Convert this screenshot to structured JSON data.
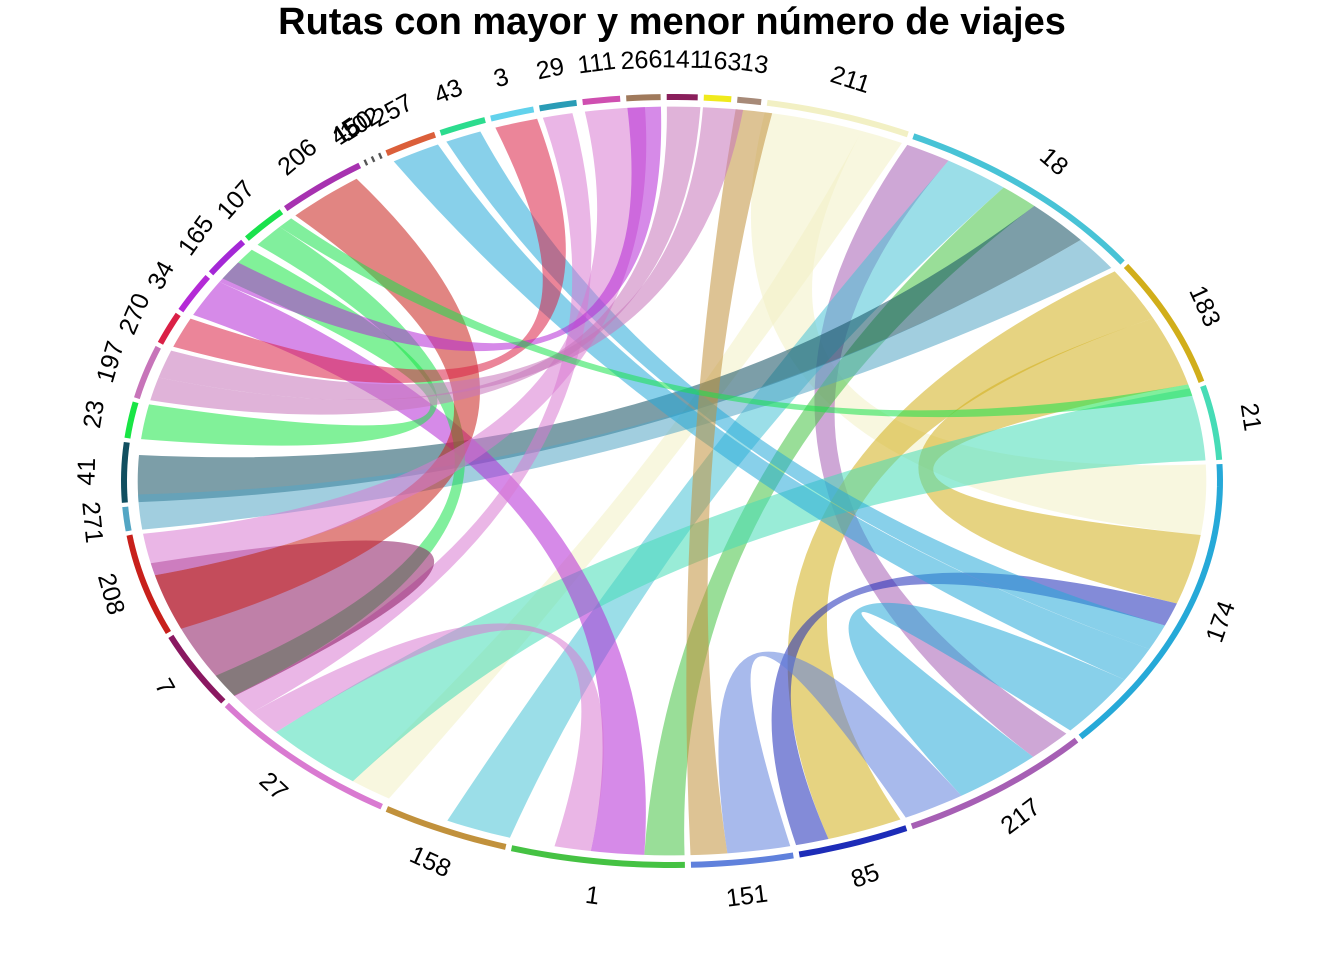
{
  "chart_data": {
    "type": "chord",
    "title": "Rutas con mayor y menor número de viajes",
    "sectors": [
      {
        "label": "211",
        "value": 86,
        "color": "#f2f0c4"
      },
      {
        "label": "18",
        "value": 162,
        "color": "#48c3d6"
      },
      {
        "label": "183",
        "value": 106,
        "color": "#d1ae1a"
      },
      {
        "label": "21",
        "value": 62,
        "color": "#46dcb6"
      },
      {
        "label": "174",
        "value": 246,
        "color": "#26a9d8"
      },
      {
        "label": "217",
        "value": 120,
        "color": "#a65fb4"
      },
      {
        "label": "85",
        "value": 66,
        "color": "#1d2cb8"
      },
      {
        "label": "151",
        "value": 60,
        "color": "#6081dc"
      },
      {
        "label": "1",
        "value": 102,
        "color": "#45c243"
      },
      {
        "label": "158",
        "value": 76,
        "color": "#c1913c"
      },
      {
        "label": "27",
        "value": 124,
        "color": "#d97ad1"
      },
      {
        "label": "7",
        "value": 62,
        "color": "#8a1861"
      },
      {
        "label": "208",
        "value": 84,
        "color": "#c8201b"
      },
      {
        "label": "271",
        "value": 20,
        "color": "#53a6c4"
      },
      {
        "label": "41",
        "value": 50,
        "color": "#114f60"
      },
      {
        "label": "23",
        "value": 30,
        "color": "#19e545"
      },
      {
        "label": "197",
        "value": 44,
        "color": "#c774b9"
      },
      {
        "label": "270",
        "value": 26,
        "color": "#da2046"
      },
      {
        "label": "34",
        "value": 32,
        "color": "#b42ad6"
      },
      {
        "label": "165",
        "value": 32,
        "color": "#a428d6"
      },
      {
        "label": "107",
        "value": 30,
        "color": "#19e24c"
      },
      {
        "label": "206",
        "value": 56,
        "color": "#a732b0"
      },
      {
        "label": "45",
        "value": 1.5,
        "color": "#555555"
      },
      {
        "label": "150",
        "value": 1.5,
        "color": "#555555"
      },
      {
        "label": "102",
        "value": 1.5,
        "color": "#555555"
      },
      {
        "label": "257",
        "value": 32,
        "color": "#db5f3a"
      },
      {
        "label": "43",
        "value": 28,
        "color": "#2cdc8e"
      },
      {
        "label": "3",
        "value": 26,
        "color": "#62d2ec"
      },
      {
        "label": "29",
        "value": 22,
        "color": "#2a9cb6"
      },
      {
        "label": "111",
        "value": 22,
        "color": "#cf4fb0"
      },
      {
        "label": "266",
        "value": 20,
        "color": "#a07a5c"
      },
      {
        "label": "141",
        "value": 18,
        "color": "#8a1f5c"
      },
      {
        "label": "163",
        "value": 16,
        "color": "#f0ea1c"
      },
      {
        "label": "13",
        "value": 14,
        "color": "#a78a78"
      }
    ],
    "chords": [
      {
        "from": "211",
        "to": "174",
        "value": 60,
        "color": "#f2f0c4"
      },
      {
        "from": "211",
        "to": "27",
        "value": 26,
        "color": "#f2f0c4"
      },
      {
        "from": "18",
        "to": "217",
        "value": 28,
        "color": "#a65fb4"
      },
      {
        "from": "18",
        "to": "158",
        "value": 40,
        "color": "#48c3d6"
      },
      {
        "from": "18",
        "to": "1",
        "value": 24,
        "color": "#45c243"
      },
      {
        "from": "18",
        "to": "41",
        "value": 40,
        "color": "#114f60"
      },
      {
        "from": "18",
        "to": "271",
        "value": 30,
        "color": "#53a6c4"
      },
      {
        "from": "183",
        "to": "85",
        "value": 46,
        "color": "#d1ae1a"
      },
      {
        "from": "183",
        "to": "174",
        "value": 60,
        "color": "#d1ae1a"
      },
      {
        "from": "21",
        "to": "27",
        "value": 62,
        "color": "#46dcb6"
      },
      {
        "from": "174",
        "to": "85",
        "value": 20,
        "color": "#1d2cb8"
      },
      {
        "from": "174",
        "to": "43",
        "value": 22,
        "color": "#26a9d8"
      },
      {
        "from": "174",
        "to": "257",
        "value": 30,
        "color": "#26a9d8"
      },
      {
        "from": "174",
        "to": "217",
        "value": 54,
        "color": "#26a9d8"
      },
      {
        "from": "217",
        "to": "151",
        "value": 38,
        "color": "#6081dc"
      },
      {
        "from": "151",
        "to": "13",
        "value": 22,
        "color": "#c1913c"
      },
      {
        "from": "1",
        "to": "34",
        "value": 32,
        "color": "#b42ad6"
      },
      {
        "from": "1",
        "to": "27",
        "value": 22,
        "color": "#d97ad1"
      },
      {
        "from": "27",
        "to": "29",
        "value": 18,
        "color": "#d97ad1"
      },
      {
        "from": "27",
        "to": "107",
        "value": 20,
        "color": "#19e24c"
      },
      {
        "from": "7",
        "to": "7",
        "value": 62,
        "color": "#8a1861"
      },
      {
        "from": "208",
        "to": "206",
        "value": 48,
        "color": "#c8201b"
      },
      {
        "from": "208",
        "to": "111",
        "value": 36,
        "color": "#d97ad1"
      },
      {
        "from": "23",
        "to": "165",
        "value": 30,
        "color": "#19e545"
      },
      {
        "from": "197",
        "to": "141",
        "value": 20,
        "color": "#c774b9"
      },
      {
        "from": "197",
        "to": "163",
        "value": 24,
        "color": "#c774b9"
      },
      {
        "from": "270",
        "to": "3",
        "value": 26,
        "color": "#da2046"
      },
      {
        "from": "34",
        "to": "266",
        "value": 20,
        "color": "#b42ad6"
      },
      {
        "from": "107",
        "to": "183",
        "value": 10,
        "color": "#19e24c"
      }
    ],
    "legend": "none",
    "grid": false
  }
}
